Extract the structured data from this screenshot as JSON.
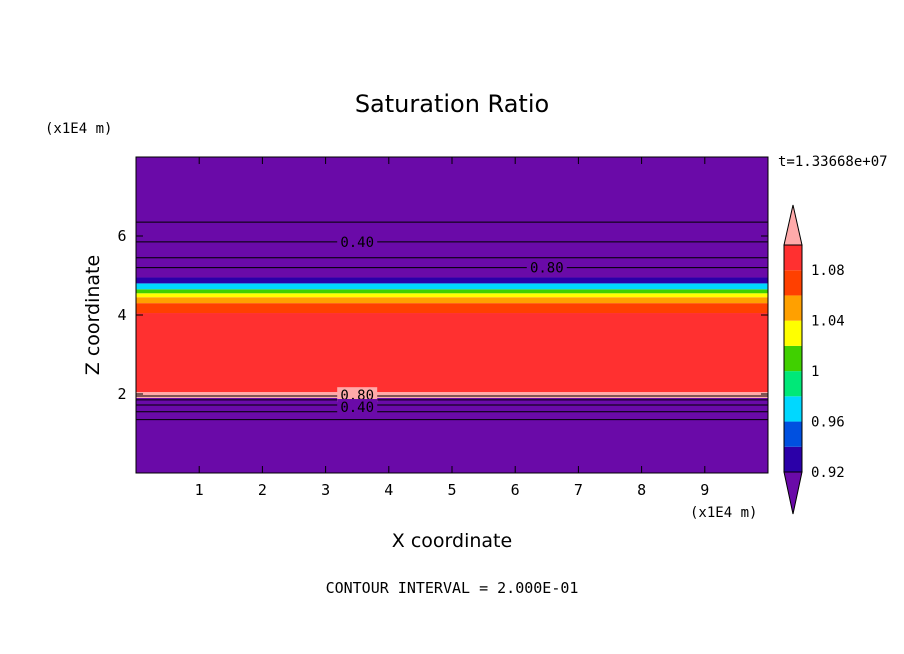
{
  "chart_data": {
    "type": "heatmap",
    "title": "Saturation Ratio",
    "xlabel": "X coordinate",
    "ylabel": "Z coordinate",
    "x_unit": "(x1E4 m)",
    "y_unit": "(x1E4 m)",
    "time_label": "t=1.33668e+07",
    "footer": "CONTOUR INTERVAL = 2.000E-01",
    "xlim": [
      0,
      10
    ],
    "ylim": [
      0,
      8
    ],
    "x_ticks": [
      1,
      2,
      3,
      4,
      5,
      6,
      7,
      8,
      9
    ],
    "y_ticks": [
      2,
      4,
      6
    ],
    "x_tick_labels": [
      "1",
      "2",
      "3",
      "4",
      "5",
      "6",
      "7",
      "8",
      "9"
    ],
    "y_tick_labels": [
      "2",
      "4",
      "6"
    ],
    "contour_labels": [
      {
        "text": "0.40",
        "x": 3.5,
        "z": 5.85
      },
      {
        "text": "0.80",
        "x": 6.5,
        "z": 5.2
      },
      {
        "text": "0.80",
        "x": 3.5,
        "z": 1.97
      },
      {
        "text": "0.40",
        "x": 3.5,
        "z": 1.67
      }
    ],
    "colorbar": {
      "levels": [
        0.92,
        0.94,
        0.96,
        0.98,
        1,
        1.02,
        1.04,
        1.06,
        1.08,
        1.1
      ],
      "tick_labels": [
        "0.92",
        "0.96",
        "1",
        "1.04",
        "1.08"
      ],
      "tick_values": [
        0.92,
        0.96,
        1.0,
        1.04,
        1.08
      ],
      "colors": [
        "#6a0aa8",
        "#2b00a8",
        "#0050e0",
        "#00d8ff",
        "#00e878",
        "#40d000",
        "#ffff00",
        "#ffa000",
        "#ff4000",
        "#ff3030",
        "#ffaaaa"
      ],
      "under_color": "#6a0aa8",
      "over_color": "#ffaaaa"
    },
    "bands": [
      {
        "z0": 0.0,
        "z1": 1.9,
        "value": "<0.92",
        "color": "#6a0aa8"
      },
      {
        "z0": 1.9,
        "z1": 2.05,
        "value": ">1.10",
        "color": "#ffaaaa"
      },
      {
        "z0": 2.05,
        "z1": 4.05,
        "value": "1.08-1.10",
        "color": "#ff3030"
      },
      {
        "z0": 4.05,
        "z1": 4.3,
        "value": "1.06-1.08",
        "color": "#ff4000"
      },
      {
        "z0": 4.3,
        "z1": 4.45,
        "value": "1.04-1.06",
        "color": "#ffa000"
      },
      {
        "z0": 4.45,
        "z1": 4.55,
        "value": "1.02-1.04",
        "color": "#ffff00"
      },
      {
        "z0": 4.55,
        "z1": 4.65,
        "value": "1.00-1.02",
        "color": "#40d000"
      },
      {
        "z0": 4.65,
        "z1": 4.8,
        "value": "0.96-0.98",
        "color": "#00d8ff"
      },
      {
        "z0": 4.8,
        "z1": 4.95,
        "value": "0.92-0.94",
        "color": "#2b00a8"
      },
      {
        "z0": 4.95,
        "z1": 8.0,
        "value": "<0.92",
        "color": "#6a0aa8"
      }
    ],
    "contour_lines_z": [
      1.35,
      1.55,
      1.72,
      1.85,
      1.95,
      5.2,
      5.45,
      5.85,
      6.35
    ]
  }
}
